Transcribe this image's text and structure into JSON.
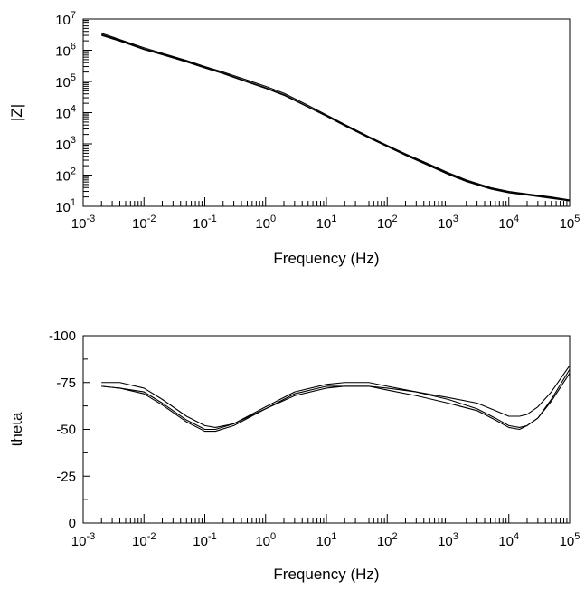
{
  "colors": {
    "line": "#000000",
    "background": "#ffffff",
    "frame": "#000000"
  },
  "chart_data": [
    {
      "type": "line",
      "title": "",
      "xlabel": "Frequency (Hz)",
      "ylabel": "|Z|",
      "x_scale": "log",
      "y_scale": "log",
      "xlim": [
        0.001,
        100000
      ],
      "ylim": [
        10,
        10000000
      ],
      "x_ticks": [
        {
          "base": "10",
          "exp": "-3"
        },
        {
          "base": "10",
          "exp": "-2"
        },
        {
          "base": "10",
          "exp": "-1"
        },
        {
          "base": "10",
          "exp": "0"
        },
        {
          "base": "10",
          "exp": "1"
        },
        {
          "base": "10",
          "exp": "2"
        },
        {
          "base": "10",
          "exp": "3"
        },
        {
          "base": "10",
          "exp": "4"
        },
        {
          "base": "10",
          "exp": "5"
        }
      ],
      "y_ticks": [
        {
          "base": "10",
          "exp": "1"
        },
        {
          "base": "10",
          "exp": "2"
        },
        {
          "base": "10",
          "exp": "3"
        },
        {
          "base": "10",
          "exp": "4"
        },
        {
          "base": "10",
          "exp": "5"
        },
        {
          "base": "10",
          "exp": "6"
        },
        {
          "base": "10",
          "exp": "7"
        }
      ],
      "grid": false,
      "legend": "none",
      "series": [
        {
          "x": [
            0.002,
            0.005,
            0.01,
            0.02,
            0.05,
            0.1,
            0.2,
            0.5,
            1,
            2,
            5,
            10,
            20,
            50,
            100,
            200,
            500,
            1000,
            2000,
            5000,
            10000,
            20000,
            50000,
            100000
          ],
          "y": [
            3500000,
            1900000,
            1200000,
            800000,
            470000,
            300000,
            200000,
            110000,
            70000,
            42000,
            17000,
            8500,
            4200,
            1700,
            900,
            480,
            220,
            120,
            70,
            40,
            30,
            25,
            20,
            16
          ]
        },
        {
          "x": [
            0.002,
            0.005,
            0.01,
            0.02,
            0.05,
            0.1,
            0.2,
            0.5,
            1,
            2,
            5,
            10,
            20,
            50,
            100,
            200,
            500,
            1000,
            2000,
            5000,
            10000,
            20000,
            50000,
            100000
          ],
          "y": [
            3200000,
            1800000,
            1100000,
            750000,
            440000,
            280000,
            185000,
            100000,
            63000,
            38000,
            15500,
            8000,
            4000,
            1600,
            850,
            450,
            205,
            112,
            66,
            38,
            28,
            24,
            19,
            15
          ]
        },
        {
          "x": [
            0.002,
            0.005,
            0.01,
            0.02,
            0.05,
            0.1,
            0.2,
            0.5,
            1,
            2,
            5,
            10,
            20,
            50,
            100,
            200,
            500,
            1000,
            2000,
            5000,
            10000,
            20000,
            50000,
            100000
          ],
          "y": [
            3000000,
            1700000,
            1050000,
            720000,
            420000,
            270000,
            178000,
            95000,
            60000,
            36000,
            15000,
            7700,
            3800,
            1550,
            820,
            430,
            195,
            106,
            62,
            36,
            27,
            23,
            18,
            15
          ]
        }
      ]
    },
    {
      "type": "line",
      "title": "",
      "xlabel": "Frequency (Hz)",
      "ylabel": "theta",
      "x_scale": "log",
      "y_scale": "linear",
      "y_inverted": true,
      "xlim": [
        0.001,
        100000
      ],
      "ylim": [
        0,
        -100
      ],
      "x_ticks": [
        {
          "base": "10",
          "exp": "-3"
        },
        {
          "base": "10",
          "exp": "-2"
        },
        {
          "base": "10",
          "exp": "-1"
        },
        {
          "base": "10",
          "exp": "0"
        },
        {
          "base": "10",
          "exp": "1"
        },
        {
          "base": "10",
          "exp": "2"
        },
        {
          "base": "10",
          "exp": "3"
        },
        {
          "base": "10",
          "exp": "4"
        },
        {
          "base": "10",
          "exp": "5"
        }
      ],
      "y_ticks": [
        "-100",
        "-75",
        "-50",
        "-25",
        "0"
      ],
      "grid": false,
      "legend": "none",
      "series": [
        {
          "x": [
            0.002,
            0.004,
            0.01,
            0.02,
            0.05,
            0.1,
            0.15,
            0.3,
            1,
            3,
            10,
            20,
            50,
            100,
            300,
            1000,
            3000,
            6000,
            10000,
            15000,
            20000,
            30000,
            50000,
            100000
          ],
          "y": [
            -75,
            -75,
            -72,
            -66,
            -57,
            -52,
            -51,
            -53,
            -61,
            -68,
            -72,
            -73,
            -73,
            -72,
            -70,
            -67,
            -64,
            -60,
            -57,
            -57,
            -58,
            -62,
            -70,
            -84
          ]
        },
        {
          "x": [
            0.002,
            0.004,
            0.01,
            0.02,
            0.05,
            0.1,
            0.15,
            0.3,
            1,
            3,
            10,
            20,
            50,
            100,
            300,
            1000,
            3000,
            6000,
            10000,
            15000,
            20000,
            30000,
            50000,
            100000
          ],
          "y": [
            -73,
            -72,
            -70,
            -64,
            -55,
            -50,
            -50,
            -53,
            -62,
            -70,
            -74,
            -75,
            -75,
            -73,
            -70,
            -66,
            -61,
            -56,
            -52,
            -51,
            -52,
            -56,
            -66,
            -82
          ]
        },
        {
          "x": [
            0.002,
            0.004,
            0.01,
            0.02,
            0.05,
            0.1,
            0.15,
            0.3,
            1,
            3,
            10,
            20,
            50,
            100,
            300,
            1000,
            3000,
            6000,
            10000,
            15000,
            20000,
            30000,
            50000,
            100000
          ],
          "y": [
            -73,
            -72,
            -69,
            -63,
            -54,
            -49,
            -49,
            -52,
            -61,
            -69,
            -73,
            -73,
            -73,
            -71,
            -68,
            -64,
            -60,
            -55,
            -51,
            -50,
            -52,
            -56,
            -65,
            -80
          ]
        }
      ]
    }
  ]
}
